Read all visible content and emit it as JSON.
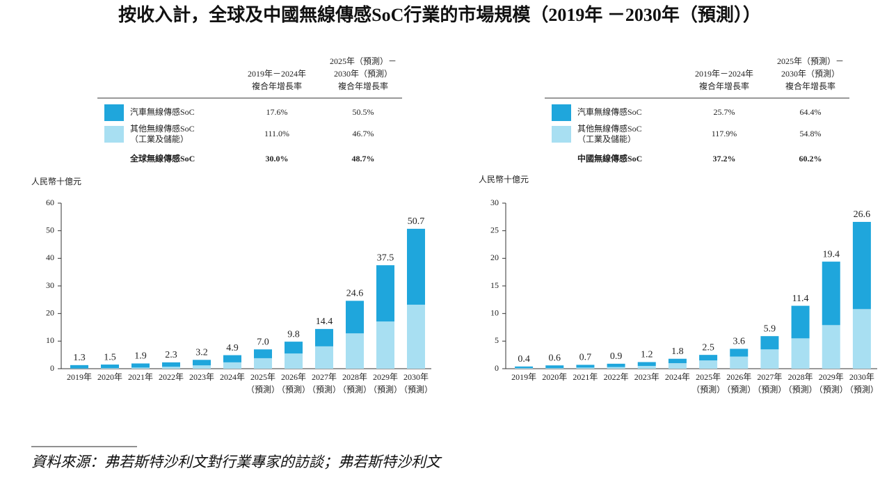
{
  "page": {
    "title": "按收入計，全球及中國無線傳感SoC行業的市場規模（2019年 －2030年（預測））",
    "source": "資料來源：弗若斯特沙利文對行業專家的訪談；弗若斯特沙利文"
  },
  "chart_data": [
    {
      "type": "bar",
      "stacked": true,
      "y_label": "人民幣十億元",
      "columns": [
        [
          "2019年－2024年",
          "複合年增長率"
        ],
        [
          "2025年（預測）－",
          "2030年（預測）",
          "複合年增長率"
        ]
      ],
      "categories": [
        [
          "2019年"
        ],
        [
          "2020年"
        ],
        [
          "2021年"
        ],
        [
          "2022年"
        ],
        [
          "2023年"
        ],
        [
          "2024年"
        ],
        [
          "2025年",
          "（預測）"
        ],
        [
          "2026年",
          "（預測）"
        ],
        [
          "2027年",
          "（預測）"
        ],
        [
          "2028年",
          "（預測）"
        ],
        [
          "2029年",
          "（預測）"
        ],
        [
          "2030年",
          "（預測）"
        ]
      ],
      "series": [
        {
          "name": "汽車無線傳感SoC",
          "color": "#1fa6dc",
          "cagr": [
            "17.6%",
            "50.5%"
          ],
          "values": [
            1.2,
            1.3,
            1.5,
            1.6,
            2.0,
            2.6,
            3.2,
            4.3,
            6.3,
            11.8,
            20.4,
            27.5
          ]
        },
        {
          "name": "其他無線傳感SoC",
          "name_note": "（工業及儲能）",
          "color": "#a8dff2",
          "cagr": [
            "111.0%",
            "46.7%"
          ],
          "values": [
            0.1,
            0.2,
            0.4,
            0.7,
            1.2,
            2.3,
            3.8,
            5.5,
            8.1,
            12.8,
            17.1,
            23.2
          ]
        }
      ],
      "total": {
        "name": "全球無線傳感SoC",
        "cagr": [
          "30.0%",
          "48.7%"
        ]
      },
      "totals": [
        1.3,
        1.5,
        1.9,
        2.3,
        3.2,
        4.9,
        7.0,
        9.8,
        14.4,
        24.6,
        37.5,
        50.7
      ],
      "value_labels": [
        "1.3",
        "1.5",
        "1.9",
        "2.3",
        "3.2",
        "4.9",
        "7.0",
        "9.8",
        "14.4",
        "24.6",
        "37.5",
        "50.7"
      ],
      "ylim": [
        0,
        60
      ],
      "yticks": [
        0,
        10,
        20,
        30,
        40,
        50,
        60
      ]
    },
    {
      "type": "bar",
      "stacked": true,
      "y_label": "人民幣十億元",
      "columns": [
        [
          "2019年－2024年",
          "複合年增長率"
        ],
        [
          "2025年（預測）－",
          "2030年（預測）",
          "複合年增長率"
        ]
      ],
      "categories": [
        [
          "2019年"
        ],
        [
          "2020年"
        ],
        [
          "2021年"
        ],
        [
          "2022年"
        ],
        [
          "2023年"
        ],
        [
          "2024年"
        ],
        [
          "2025年",
          "（預測）"
        ],
        [
          "2026年",
          "（預測）"
        ],
        [
          "2027年",
          "（預測）"
        ],
        [
          "2028年",
          "（預測）"
        ],
        [
          "2029年",
          "（預測）"
        ],
        [
          "2030年",
          "（預測）"
        ]
      ],
      "series": [
        {
          "name": "汽車無線傳感SoC",
          "color": "#1fa6dc",
          "cagr": [
            "25.7%",
            "64.4%"
          ],
          "values": [
            0.3,
            0.5,
            0.5,
            0.6,
            0.7,
            0.8,
            1.0,
            1.4,
            2.4,
            5.9,
            11.5,
            15.8
          ]
        },
        {
          "name": "其他無線傳感SoC",
          "name_note": "（工業及儲能）",
          "color": "#a8dff2",
          "cagr": [
            "117.9%",
            "54.8%"
          ],
          "values": [
            0.1,
            0.1,
            0.2,
            0.3,
            0.5,
            1.0,
            1.5,
            2.2,
            3.5,
            5.5,
            7.9,
            10.8
          ]
        }
      ],
      "total": {
        "name": "中國無線傳感SoC",
        "cagr": [
          "37.2%",
          "60.2%"
        ]
      },
      "totals": [
        0.4,
        0.6,
        0.7,
        0.9,
        1.2,
        1.8,
        2.5,
        3.6,
        5.9,
        11.4,
        19.4,
        26.6
      ],
      "value_labels": [
        "0.4",
        "0.6",
        "0.7",
        "0.9",
        "1.2",
        "1.8",
        "2.5",
        "3.6",
        "5.9",
        "11.4",
        "19.4",
        "26.6"
      ],
      "ylim": [
        0,
        30
      ],
      "yticks": [
        0,
        5,
        10,
        15,
        20,
        25,
        30
      ]
    }
  ]
}
